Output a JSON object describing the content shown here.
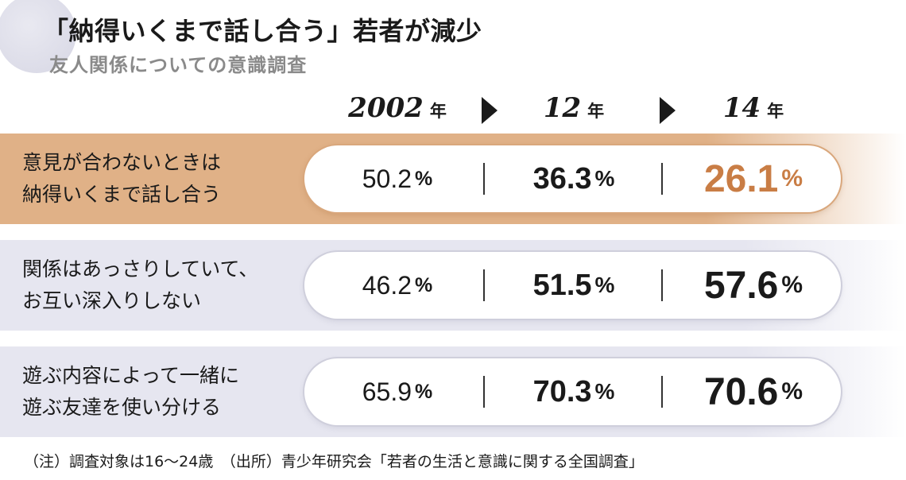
{
  "header": {
    "title": "「納得いくまで話し合う」若者が減少",
    "subtitle": "友人関係についての意識調査"
  },
  "chart_data": {
    "type": "table",
    "title": "「納得いくまで話し合う」若者が減少",
    "subtitle": "友人関係についての意識調査",
    "columns": [
      {
        "year": "2002",
        "unit": "年"
      },
      {
        "year": "12",
        "unit": "年"
      },
      {
        "year": "14",
        "unit": "年"
      }
    ],
    "unit": "%",
    "rows": [
      {
        "label_lines": [
          "意見が合わないときは",
          "納得いくまで話し合う"
        ],
        "values": [
          "50.2",
          "36.3",
          "26.1"
        ],
        "highlight": true
      },
      {
        "label_lines": [
          "関係はあっさりしていて、",
          "お互い深入りしない"
        ],
        "values": [
          "46.2",
          "51.5",
          "57.6"
        ],
        "highlight": false
      },
      {
        "label_lines": [
          "遊ぶ内容によって一緒に",
          "遊ぶ友達を使い分ける"
        ],
        "values": [
          "65.9",
          "70.3",
          "70.6"
        ],
        "highlight": false
      }
    ]
  },
  "footnote": "（注）調査対象は16～24歳　（出所）青少年研究会「若者の生活と意識に関する全国調査」",
  "colors": {
    "highlight_band": "#e0b187",
    "highlight_value": "#c97d45",
    "neutral_band": "#e6e6f0",
    "deco_circle": "#dcdce8",
    "text": "#1a1a1a",
    "subtitle": "#8a8a8a"
  }
}
